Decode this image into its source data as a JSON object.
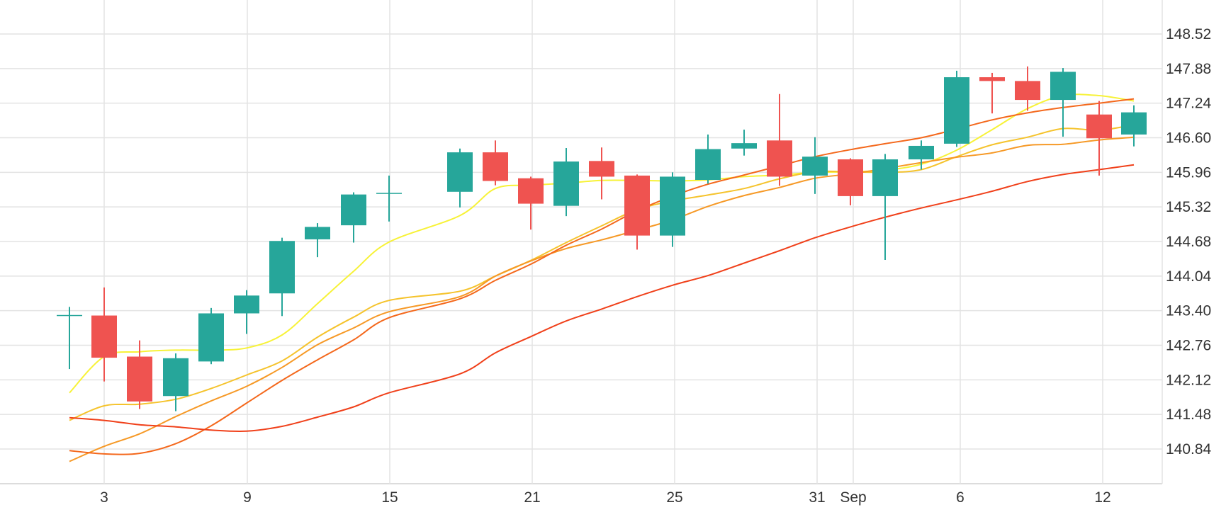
{
  "chart_data": {
    "type": "candlestick",
    "x_tick_labels": [
      "3",
      "9",
      "15",
      "21",
      "25",
      "31",
      "Sep",
      "6",
      "12"
    ],
    "y_tick_labels": [
      "148.52",
      "147.88",
      "147.24",
      "146.60",
      "145.96",
      "145.32",
      "144.68",
      "144.04",
      "143.40",
      "142.76",
      "142.12",
      "141.48",
      "140.84"
    ],
    "y_ticks": [
      148.52,
      147.88,
      147.24,
      146.6,
      145.96,
      145.32,
      144.68,
      144.04,
      143.4,
      142.76,
      142.12,
      141.48,
      140.84
    ],
    "ylim": [
      140.21,
      149.15
    ],
    "grid": true,
    "up_color": "#26a69a",
    "down_color": "#ef5350",
    "candles": [
      {
        "x": "Aug 2",
        "open": 143.32,
        "high": 143.47,
        "low": 142.32,
        "close": 143.32
      },
      {
        "x": "Aug 3",
        "open": 143.31,
        "high": 143.83,
        "low": 142.09,
        "close": 142.53
      },
      {
        "x": "Aug 4",
        "open": 142.55,
        "high": 142.85,
        "low": 141.58,
        "close": 141.72
      },
      {
        "x": "Aug 5",
        "open": 141.82,
        "high": 142.61,
        "low": 141.54,
        "close": 142.52
      },
      {
        "x": "Aug 7",
        "open": 142.46,
        "high": 143.45,
        "low": 142.41,
        "close": 143.35
      },
      {
        "x": "Aug 8",
        "open": 143.35,
        "high": 143.78,
        "low": 142.97,
        "close": 143.68
      },
      {
        "x": "Aug 9",
        "open": 143.72,
        "high": 144.75,
        "low": 143.3,
        "close": 144.69
      },
      {
        "x": "Aug 10",
        "open": 144.72,
        "high": 145.02,
        "low": 144.39,
        "close": 144.95
      },
      {
        "x": "Aug 11",
        "open": 144.98,
        "high": 145.59,
        "low": 144.66,
        "close": 145.55
      },
      {
        "x": "Aug 12",
        "open": 145.58,
        "high": 145.9,
        "low": 145.05,
        "close": 145.58
      },
      {
        "x": "Aug 14",
        "open": 145.6,
        "high": 146.4,
        "low": 145.31,
        "close": 146.33
      },
      {
        "x": "Aug 15",
        "open": 146.33,
        "high": 146.55,
        "low": 145.72,
        "close": 145.8
      },
      {
        "x": "Aug 16",
        "open": 145.85,
        "high": 145.88,
        "low": 144.9,
        "close": 145.38
      },
      {
        "x": "Aug 17",
        "open": 145.34,
        "high": 146.41,
        "low": 145.15,
        "close": 146.16
      },
      {
        "x": "Aug 18",
        "open": 146.17,
        "high": 146.42,
        "low": 145.46,
        "close": 145.88
      },
      {
        "x": "Aug 19",
        "open": 145.9,
        "high": 145.92,
        "low": 144.53,
        "close": 144.79
      },
      {
        "x": "Aug 21",
        "open": 144.79,
        "high": 145.96,
        "low": 144.58,
        "close": 145.88
      },
      {
        "x": "Aug 22",
        "open": 145.82,
        "high": 146.66,
        "low": 145.75,
        "close": 146.39
      },
      {
        "x": "Aug 23",
        "open": 146.4,
        "high": 146.75,
        "low": 146.27,
        "close": 146.5
      },
      {
        "x": "Aug 24",
        "open": 146.55,
        "high": 147.41,
        "low": 145.71,
        "close": 145.88
      },
      {
        "x": "Aug 25",
        "open": 145.9,
        "high": 146.61,
        "low": 145.56,
        "close": 146.25
      },
      {
        "x": "Aug 26",
        "open": 146.2,
        "high": 146.22,
        "low": 145.35,
        "close": 145.52
      },
      {
        "x": "Aug 28",
        "open": 145.52,
        "high": 146.3,
        "low": 144.34,
        "close": 146.2
      },
      {
        "x": "Aug 29",
        "open": 146.2,
        "high": 146.55,
        "low": 146.01,
        "close": 146.45
      },
      {
        "x": "Aug 30",
        "open": 146.49,
        "high": 147.84,
        "low": 146.43,
        "close": 147.72
      },
      {
        "x": "Aug 31",
        "open": 147.72,
        "high": 147.8,
        "low": 147.05,
        "close": 147.65
      },
      {
        "x": "Sep 1",
        "open": 147.65,
        "high": 147.92,
        "low": 147.1,
        "close": 147.3
      },
      {
        "x": "Sep 2",
        "open": 147.3,
        "high": 147.89,
        "low": 146.62,
        "close": 147.82
      },
      {
        "x": "Sep 4",
        "open": 147.03,
        "high": 147.28,
        "low": 145.9,
        "close": 146.59
      },
      {
        "x": "Sep 5",
        "open": 146.66,
        "high": 147.2,
        "low": 146.44,
        "close": 147.07
      }
    ],
    "series": [
      {
        "color": "#f7f237",
        "values": [
          141.88,
          142.55,
          142.64,
          142.67,
          142.67,
          142.71,
          142.95,
          143.53,
          144.13,
          144.67,
          145.16,
          145.66,
          145.72,
          145.76,
          145.81,
          145.81,
          145.8,
          145.82,
          145.88,
          145.91,
          145.96,
          145.97,
          146.0,
          146.11,
          146.37,
          146.75,
          147.14,
          147.38,
          147.38,
          147.28
        ]
      },
      {
        "color": "#f5c32c",
        "values": [
          141.37,
          141.64,
          141.67,
          141.76,
          141.96,
          142.21,
          142.47,
          142.91,
          143.28,
          143.59,
          143.76,
          144.04,
          144.33,
          144.66,
          144.97,
          145.27,
          145.43,
          145.54,
          145.66,
          145.84,
          145.97,
          145.97,
          145.96,
          146.01,
          146.25,
          146.47,
          146.61,
          146.77,
          146.74,
          146.84
        ]
      },
      {
        "color": "#f69926",
        "values": [
          140.61,
          140.89,
          141.12,
          141.44,
          141.73,
          142.0,
          142.35,
          142.77,
          143.08,
          143.38,
          143.66,
          144.04,
          144.32,
          144.55,
          144.71,
          144.89,
          145.08,
          145.33,
          145.53,
          145.68,
          145.85,
          145.93,
          146.03,
          146.14,
          146.24,
          146.32,
          146.46,
          146.48,
          146.56,
          146.61
        ]
      },
      {
        "color": "#f4681c",
        "values": [
          140.81,
          140.75,
          140.76,
          140.94,
          141.27,
          141.69,
          142.11,
          142.49,
          142.86,
          143.27,
          143.62,
          143.96,
          144.26,
          144.61,
          144.91,
          145.25,
          145.52,
          145.74,
          145.91,
          146.08,
          146.25,
          146.38,
          146.49,
          146.6,
          146.76,
          146.93,
          147.06,
          147.16,
          147.24,
          147.32
        ]
      },
      {
        "color": "#f0401a",
        "values": [
          141.42,
          141.37,
          141.29,
          141.25,
          141.19,
          141.17,
          141.26,
          141.43,
          141.62,
          141.88,
          142.23,
          142.62,
          142.92,
          143.21,
          143.43,
          143.66,
          143.87,
          144.05,
          144.28,
          144.51,
          144.75,
          144.95,
          145.13,
          145.3,
          145.45,
          145.61,
          145.79,
          145.92,
          146.01,
          146.1
        ]
      }
    ]
  }
}
